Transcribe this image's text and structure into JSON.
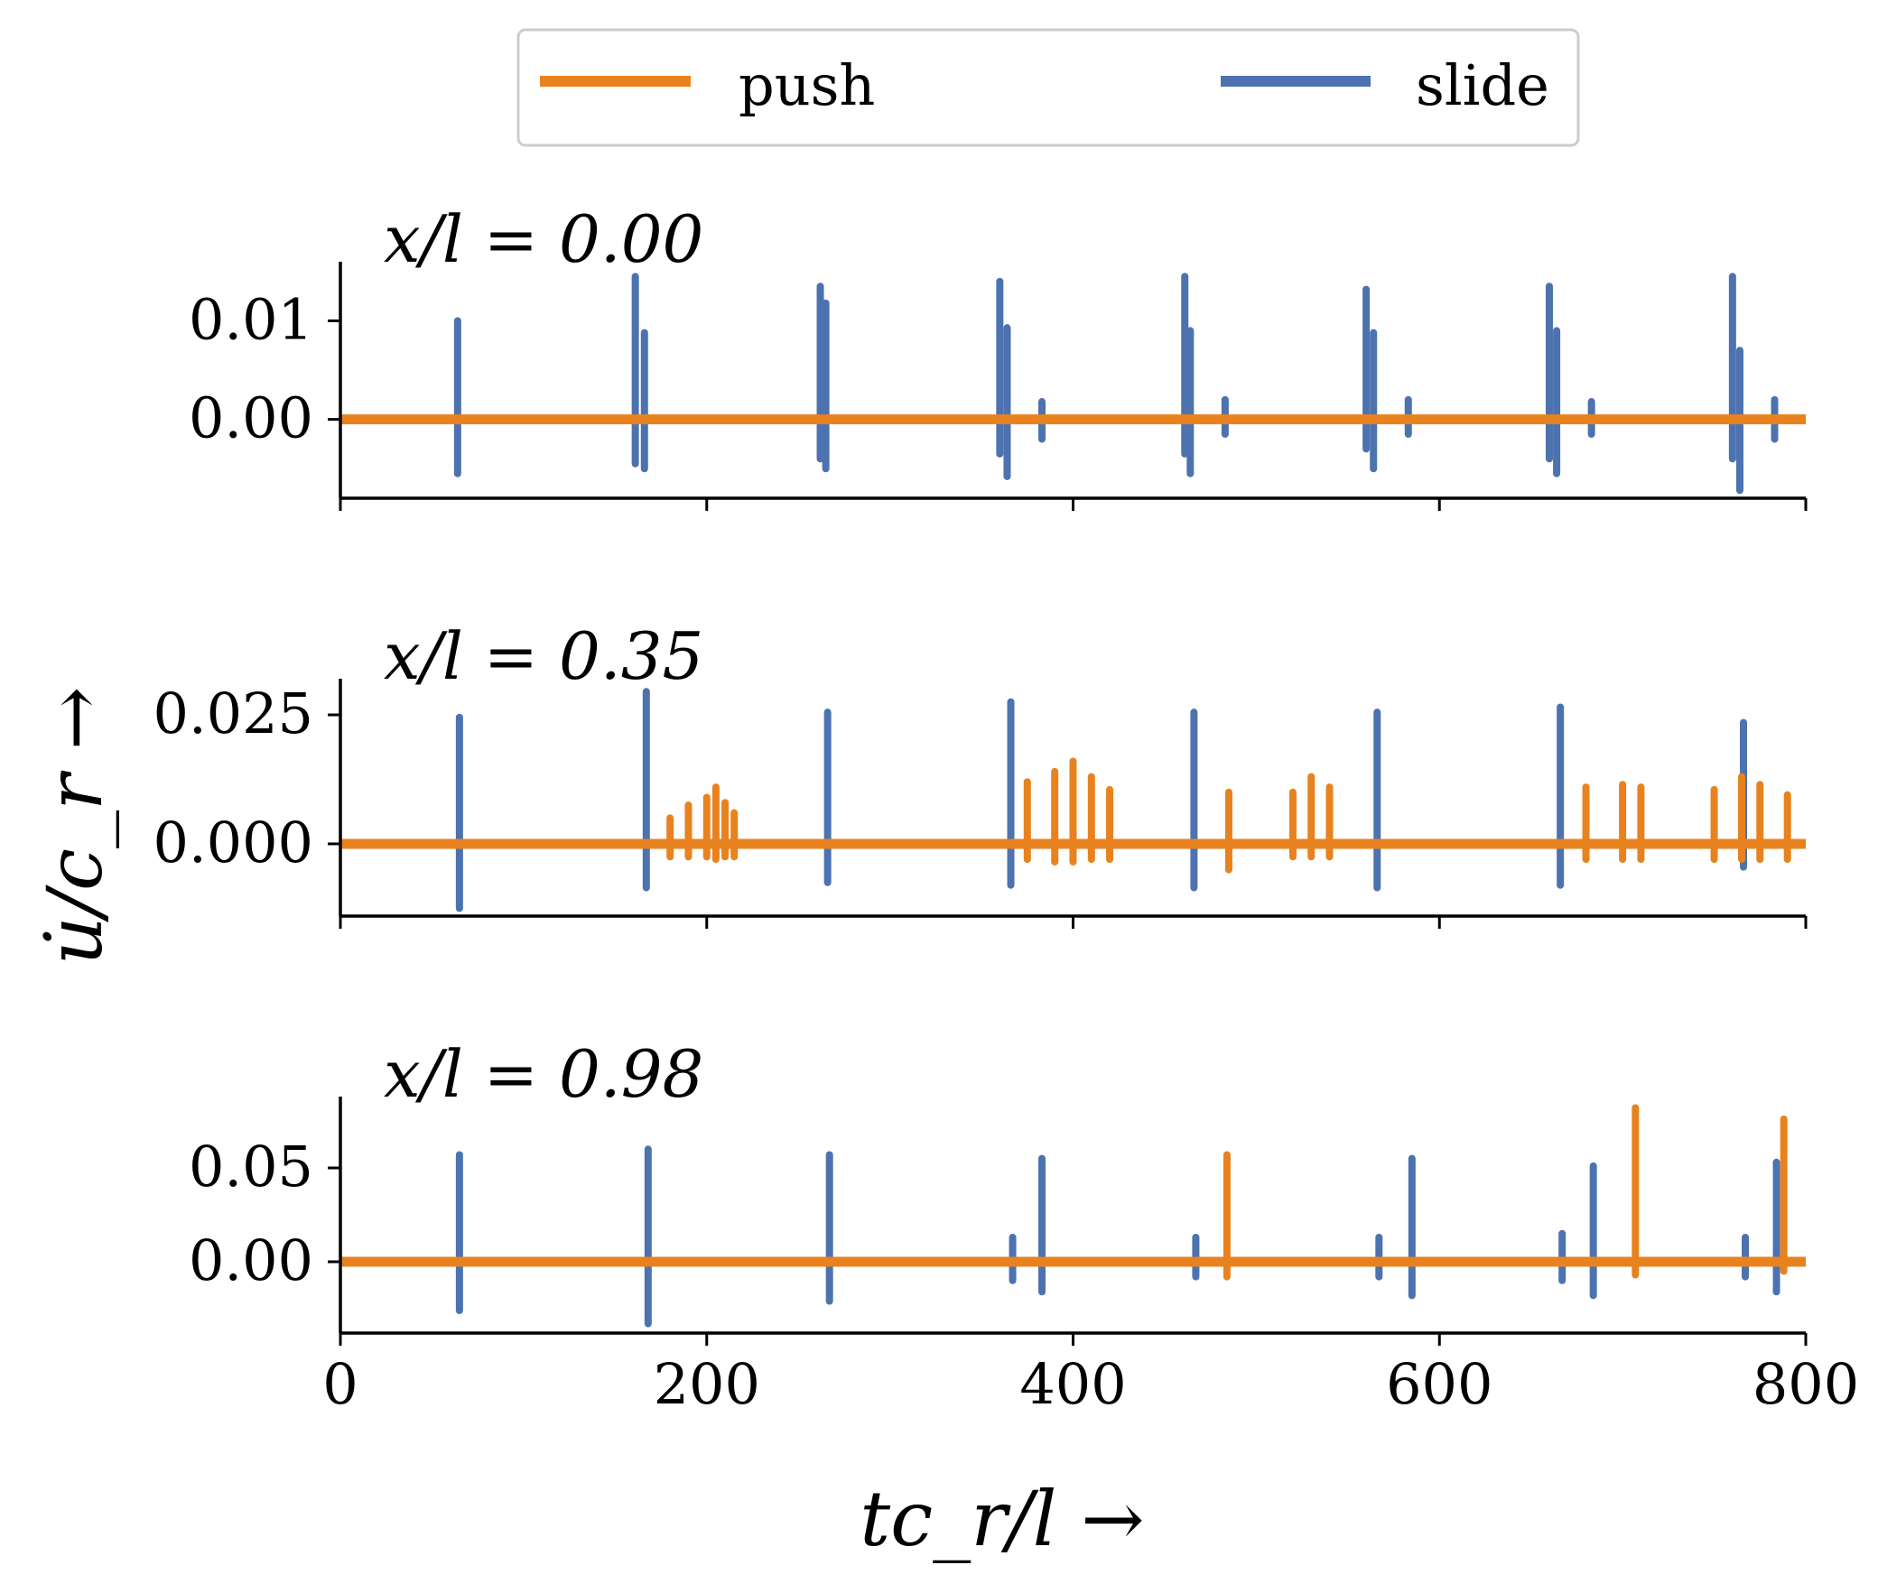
{
  "chart_data": {
    "type": "line",
    "xlabel": "tc_r/l →",
    "ylabel": "u̇/c_r →",
    "xlim": [
      0,
      800
    ],
    "x_ticks": [
      "0",
      "200",
      "400",
      "600",
      "800"
    ],
    "grid": false,
    "legend": {
      "placement": "top-center",
      "entries": [
        {
          "name": "push",
          "color": "#E8821E"
        },
        {
          "name": "slide",
          "color": "#4C72B0"
        }
      ]
    },
    "panels": [
      {
        "title": "x/l = 0.00",
        "ylim": [
          -0.008,
          0.016
        ],
        "y_ticks": [
          {
            "value": 0.01,
            "label": "0.01"
          },
          {
            "value": 0.0,
            "label": "0.00"
          }
        ],
        "series": [
          {
            "name": "slide",
            "color": "#4C72B0",
            "spikes": [
              {
                "x": 64,
                "max": 0.01,
                "min": -0.0055
              },
              {
                "x": 161,
                "max": 0.0145,
                "min": -0.0045
              },
              {
                "x": 166,
                "max": 0.0088,
                "min": -0.005
              },
              {
                "x": 262,
                "max": 0.0135,
                "min": -0.004
              },
              {
                "x": 265,
                "max": 0.0118,
                "min": -0.005
              },
              {
                "x": 360,
                "max": 0.014,
                "min": -0.0035
              },
              {
                "x": 364,
                "max": 0.0093,
                "min": -0.0058
              },
              {
                "x": 383,
                "max": 0.0018,
                "min": -0.002
              },
              {
                "x": 461,
                "max": 0.0145,
                "min": -0.0035
              },
              {
                "x": 464,
                "max": 0.009,
                "min": -0.0055
              },
              {
                "x": 483,
                "max": 0.002,
                "min": -0.0015
              },
              {
                "x": 560,
                "max": 0.0132,
                "min": -0.003
              },
              {
                "x": 564,
                "max": 0.0088,
                "min": -0.005
              },
              {
                "x": 583,
                "max": 0.002,
                "min": -0.0015
              },
              {
                "x": 660,
                "max": 0.0135,
                "min": -0.004
              },
              {
                "x": 664,
                "max": 0.009,
                "min": -0.0055
              },
              {
                "x": 683,
                "max": 0.0018,
                "min": -0.0015
              },
              {
                "x": 760,
                "max": 0.0145,
                "min": -0.004
              },
              {
                "x": 764,
                "max": 0.007,
                "min": -0.0072
              },
              {
                "x": 783,
                "max": 0.002,
                "min": -0.002
              }
            ]
          },
          {
            "name": "push",
            "color": "#E8821E",
            "spikes": []
          }
        ]
      },
      {
        "title": "x/l = 0.35",
        "ylim": [
          -0.014,
          0.032
        ],
        "y_ticks": [
          {
            "value": 0.025,
            "label": "0.025"
          },
          {
            "value": 0.0,
            "label": "0.000"
          }
        ],
        "series": [
          {
            "name": "slide",
            "color": "#4C72B0",
            "spikes": [
              {
                "x": 65,
                "max": 0.0245,
                "min": -0.0125
              },
              {
                "x": 167,
                "max": 0.0295,
                "min": -0.0085
              },
              {
                "x": 266,
                "max": 0.0255,
                "min": -0.0075
              },
              {
                "x": 366,
                "max": 0.0275,
                "min": -0.008
              },
              {
                "x": 466,
                "max": 0.0255,
                "min": -0.0085
              },
              {
                "x": 566,
                "max": 0.0255,
                "min": -0.0085
              },
              {
                "x": 666,
                "max": 0.0265,
                "min": -0.008
              },
              {
                "x": 766,
                "max": 0.0235,
                "min": -0.0045
              }
            ]
          },
          {
            "name": "push",
            "color": "#E8821E",
            "spikes": [
              {
                "x": 180,
                "max": 0.005,
                "min": -0.0025
              },
              {
                "x": 190,
                "max": 0.0075,
                "min": -0.0025
              },
              {
                "x": 200,
                "max": 0.009,
                "min": -0.0025
              },
              {
                "x": 205,
                "max": 0.011,
                "min": -0.003
              },
              {
                "x": 210,
                "max": 0.008,
                "min": -0.0025
              },
              {
                "x": 215,
                "max": 0.006,
                "min": -0.0025
              },
              {
                "x": 375,
                "max": 0.012,
                "min": -0.003
              },
              {
                "x": 390,
                "max": 0.014,
                "min": -0.0035
              },
              {
                "x": 400,
                "max": 0.016,
                "min": -0.0035
              },
              {
                "x": 410,
                "max": 0.013,
                "min": -0.003
              },
              {
                "x": 420,
                "max": 0.0105,
                "min": -0.003
              },
              {
                "x": 485,
                "max": 0.01,
                "min": -0.005
              },
              {
                "x": 520,
                "max": 0.01,
                "min": -0.0025
              },
              {
                "x": 530,
                "max": 0.013,
                "min": -0.0025
              },
              {
                "x": 540,
                "max": 0.011,
                "min": -0.0025
              },
              {
                "x": 680,
                "max": 0.011,
                "min": -0.003
              },
              {
                "x": 700,
                "max": 0.0115,
                "min": -0.003
              },
              {
                "x": 710,
                "max": 0.011,
                "min": -0.003
              },
              {
                "x": 750,
                "max": 0.0105,
                "min": -0.003
              },
              {
                "x": 765,
                "max": 0.013,
                "min": -0.003
              },
              {
                "x": 775,
                "max": 0.0115,
                "min": -0.003
              },
              {
                "x": 790,
                "max": 0.0095,
                "min": -0.003
              }
            ]
          }
        ]
      },
      {
        "title": "x/l = 0.98",
        "ylim": [
          -0.038,
          0.088
        ],
        "y_ticks": [
          {
            "value": 0.05,
            "label": "0.05"
          },
          {
            "value": 0.0,
            "label": "0.00"
          }
        ],
        "series": [
          {
            "name": "slide",
            "color": "#4C72B0",
            "spikes": [
              {
                "x": 65,
                "max": 0.057,
                "min": -0.026
              },
              {
                "x": 168,
                "max": 0.06,
                "min": -0.033
              },
              {
                "x": 267,
                "max": 0.057,
                "min": -0.021
              },
              {
                "x": 367,
                "max": 0.013,
                "min": -0.01
              },
              {
                "x": 383,
                "max": 0.055,
                "min": -0.016
              },
              {
                "x": 467,
                "max": 0.013,
                "min": -0.008
              },
              {
                "x": 567,
                "max": 0.013,
                "min": -0.008
              },
              {
                "x": 585,
                "max": 0.055,
                "min": -0.018
              },
              {
                "x": 667,
                "max": 0.015,
                "min": -0.01
              },
              {
                "x": 684,
                "max": 0.051,
                "min": -0.018
              },
              {
                "x": 767,
                "max": 0.013,
                "min": -0.008
              },
              {
                "x": 784,
                "max": 0.053,
                "min": -0.016
              }
            ]
          },
          {
            "name": "push",
            "color": "#E8821E",
            "spikes": [
              {
                "x": 484,
                "max": 0.057,
                "min": -0.008
              },
              {
                "x": 707,
                "max": 0.082,
                "min": -0.007
              },
              {
                "x": 788,
                "max": 0.076,
                "min": -0.005
              }
            ]
          }
        ]
      }
    ]
  }
}
